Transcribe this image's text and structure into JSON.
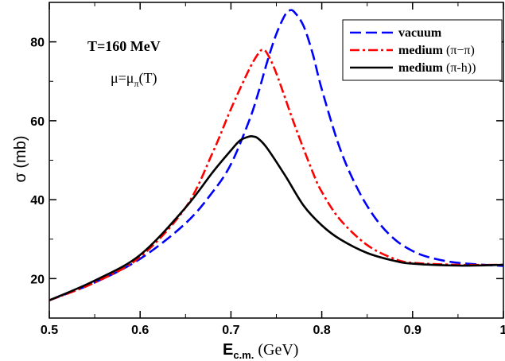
{
  "chart_data": {
    "type": "line",
    "xlabel": {
      "main": "E",
      "sub": "c.m.",
      "unit": " (GeV)"
    },
    "ylabel": "σ (mb)",
    "xlim": [
      0.5,
      1.0
    ],
    "ylim": [
      10,
      90
    ],
    "x_ticks": [
      "0.5",
      "0.6",
      "0.7",
      "0.8",
      "0.9",
      "1"
    ],
    "y_ticks": [
      "20",
      "40",
      "60",
      "80"
    ],
    "grid": false,
    "legend_position": "top-right",
    "annotations": {
      "temperature": "T=160 MeV",
      "mu_main": "μ=μ",
      "mu_sub": "π",
      "mu_tail": "(T)"
    },
    "series": [
      {
        "name": "vacuum",
        "legend_bold": "vacuum",
        "legend_rest": "",
        "color": "#0000ff",
        "dash": "14,6",
        "x": [
          0.5,
          0.55,
          0.6,
          0.65,
          0.68,
          0.7,
          0.72,
          0.73,
          0.74,
          0.75,
          0.76,
          0.765,
          0.77,
          0.78,
          0.79,
          0.8,
          0.82,
          0.84,
          0.86,
          0.88,
          0.9,
          0.92,
          0.95,
          1.0
        ],
        "y": [
          14.5,
          19.0,
          25.0,
          34.0,
          42.0,
          49.0,
          60.0,
          67.0,
          75.0,
          82.0,
          87.0,
          88.0,
          87.5,
          84.0,
          77.0,
          68.0,
          53.0,
          42.5,
          35.0,
          30.0,
          27.0,
          25.3,
          24.0,
          23.2
        ]
      },
      {
        "name": "medium (π–π)",
        "legend_bold": "medium ",
        "legend_rest": "(π−π)",
        "color": "#ff0000",
        "dash": "12,4,3,4",
        "x": [
          0.5,
          0.55,
          0.6,
          0.65,
          0.68,
          0.7,
          0.72,
          0.73,
          0.735,
          0.74,
          0.75,
          0.77,
          0.79,
          0.8,
          0.82,
          0.85,
          0.88,
          0.9,
          0.95,
          1.0
        ],
        "y": [
          14.5,
          19.0,
          25.5,
          38.0,
          52.0,
          63.0,
          73.0,
          77.0,
          78.0,
          77.0,
          72.0,
          59.0,
          47.0,
          42.0,
          35.0,
          28.5,
          25.0,
          24.0,
          23.5,
          23.5
        ]
      },
      {
        "name": "medium (π-h))",
        "legend_bold": "medium ",
        "legend_rest": "(π-h))",
        "color": "#000000",
        "dash": "",
        "x": [
          0.5,
          0.55,
          0.6,
          0.65,
          0.68,
          0.7,
          0.71,
          0.72,
          0.725,
          0.73,
          0.74,
          0.76,
          0.78,
          0.8,
          0.82,
          0.85,
          0.88,
          0.9,
          0.95,
          1.0
        ],
        "y": [
          14.5,
          19.5,
          26.0,
          38.0,
          47.0,
          52.5,
          55.0,
          56.0,
          56.0,
          55.5,
          53.0,
          46.0,
          38.5,
          33.5,
          30.0,
          26.5,
          24.5,
          23.8,
          23.3,
          23.5
        ]
      }
    ]
  }
}
